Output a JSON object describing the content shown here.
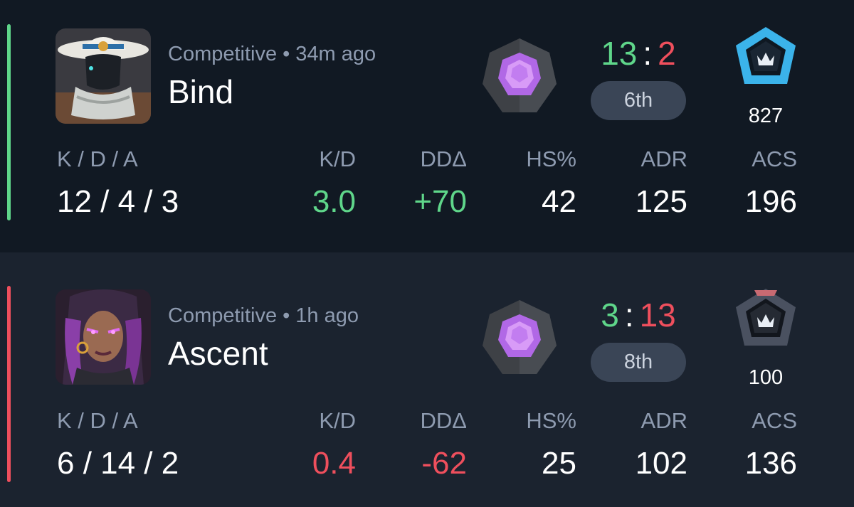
{
  "colors": {
    "win": "#5fd68a",
    "loss": "#ef4f5d",
    "positive": "#5fd68a",
    "negative": "#ef4f5d"
  },
  "stat_labels": {
    "kda": "K / D / A",
    "kd": "K/D",
    "dd_delta": "DDΔ",
    "hs": "HS%",
    "adr": "ADR",
    "acs": "ACS"
  },
  "matches": [
    {
      "result": "win",
      "agent_icon": "cowboy-hat-agent-portrait",
      "mode": "Competitive",
      "separator": "•",
      "time_ago": "34m ago",
      "map": "Bind",
      "rank_icon": "purple-gem-rank-icon",
      "score_team": "13",
      "score_separator": ":",
      "score_enemy": "2",
      "placement": "6th",
      "tier_icon": "blue-tier-badge-icon",
      "tier_color": "#3bb3ea",
      "rr": "827",
      "kda": "12 / 4 / 3",
      "kd": "3.0",
      "kd_trend": "positive",
      "dd_delta": "+70",
      "dd_trend": "positive",
      "hs": "42",
      "adr": "125",
      "acs": "196"
    },
    {
      "result": "loss",
      "agent_icon": "purple-hair-agent-portrait",
      "mode": "Competitive",
      "separator": "•",
      "time_ago": "1h ago",
      "map": "Ascent",
      "rank_icon": "purple-gem-rank-icon",
      "score_team": "3",
      "score_separator": ":",
      "score_enemy": "13",
      "placement": "8th",
      "tier_icon": "gray-tier-badge-icon",
      "tier_color": "#4a5160",
      "rr": "100",
      "kda": "6 / 14 / 2",
      "kd": "0.4",
      "kd_trend": "negative",
      "dd_delta": "-62",
      "dd_trend": "negative",
      "hs": "25",
      "adr": "102",
      "acs": "136"
    }
  ]
}
